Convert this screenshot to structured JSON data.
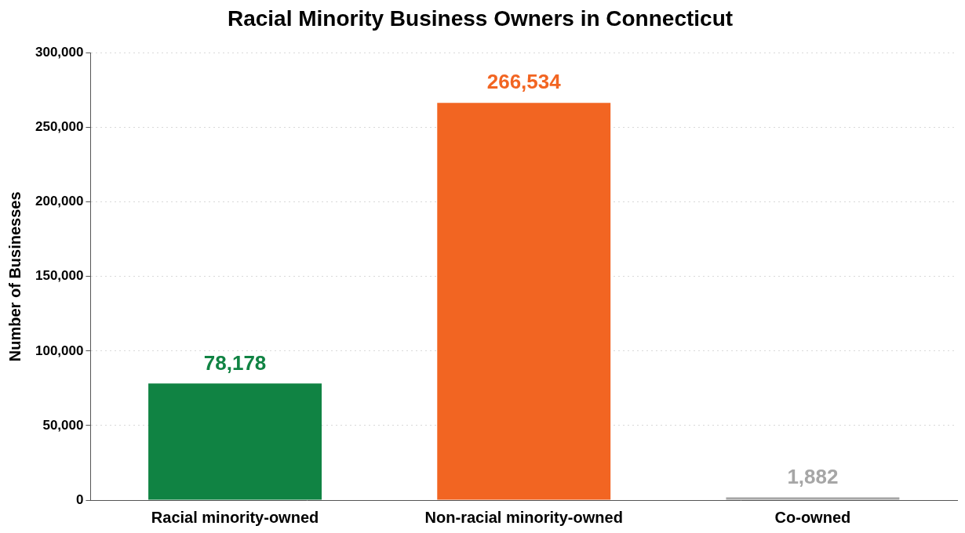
{
  "chart_data": {
    "type": "bar",
    "title": "Racial Minority Business Owners in Connecticut",
    "y_label": "Number of Businesses",
    "categories": [
      "Racial minority-owned",
      "Non-racial minority-owned",
      "Co-owned"
    ],
    "values": [
      78178,
      266534,
      1882
    ],
    "value_labels": [
      "78,178",
      "266,534",
      "1,882"
    ],
    "colors": [
      "#108343",
      "#f26522",
      "#a6a6a6"
    ],
    "ylim": [
      0,
      300000
    ],
    "yticks": [
      0,
      {
        "value": 50000,
        "label": "50,000"
      },
      {
        "value": 100000,
        "label": "100,000"
      },
      {
        "value": 150000,
        "label": "150,000"
      },
      {
        "value": 200000,
        "label": "200,000"
      },
      {
        "value": 250000,
        "label": "250,000"
      },
      {
        "value": 300000,
        "label": "300,000"
      }
    ],
    "grid": true,
    "data_labels": true
  }
}
